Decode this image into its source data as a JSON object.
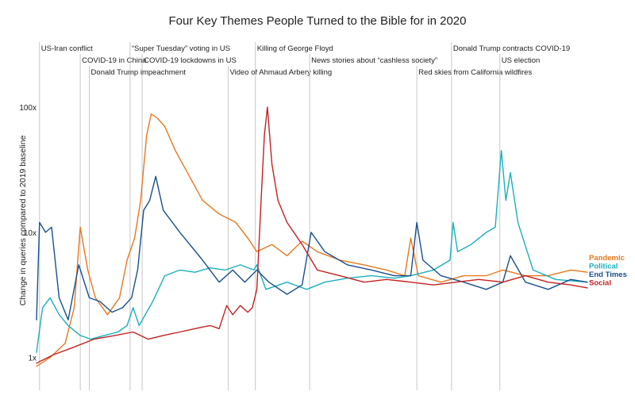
{
  "chart_data": {
    "type": "line",
    "title": "Four Key Themes People Turned to the Bible for in 2020",
    "ylabel": "Change in queries compared to 2019 baseline",
    "yscale": "log",
    "ylim": [
      0.8,
      140
    ],
    "xlim": [
      "2020-01-01",
      "2020-12-31"
    ],
    "y_ticks": [
      {
        "value": 1,
        "label": "1x"
      },
      {
        "value": 10,
        "label": "10x"
      },
      {
        "value": 100,
        "label": "100x"
      }
    ],
    "grid": false,
    "legend": "right",
    "events": [
      {
        "date": "2020-01-03",
        "label": "US-Iran conflict"
      },
      {
        "date": "2020-01-30",
        "label": "COVID-19 in China"
      },
      {
        "date": "2020-02-05",
        "label": "Donald Trump impeachment"
      },
      {
        "date": "2020-03-03",
        "label": "“Super Tuesday” voting in US"
      },
      {
        "date": "2020-03-11",
        "label": "COVID-19 lockdowns in US"
      },
      {
        "date": "2020-05-07",
        "label": "Video of Ahmaud Arbery killing"
      },
      {
        "date": "2020-05-25",
        "label": "Killing of George Floyd"
      },
      {
        "date": "2020-06-30",
        "label": "News stories about “cashless society”"
      },
      {
        "date": "2020-09-09",
        "label": "Red skies from California wildfires"
      },
      {
        "date": "2020-10-02",
        "label": "Donald Trump contracts COVID-19"
      },
      {
        "date": "2020-11-03",
        "label": "US election"
      }
    ],
    "series": [
      {
        "name": "Pandemic",
        "color": "#e8781e",
        "points": [
          [
            "2020-01-01",
            0.85
          ],
          [
            "2020-01-10",
            1.0
          ],
          [
            "2020-01-20",
            1.3
          ],
          [
            "2020-01-26",
            2.5
          ],
          [
            "2020-01-30",
            11
          ],
          [
            "2020-02-04",
            5
          ],
          [
            "2020-02-09",
            3
          ],
          [
            "2020-02-17",
            2.2
          ],
          [
            "2020-02-25",
            3.0
          ],
          [
            "2020-03-01",
            6
          ],
          [
            "2020-03-06",
            9
          ],
          [
            "2020-03-10",
            18
          ],
          [
            "2020-03-14",
            60
          ],
          [
            "2020-03-17",
            88
          ],
          [
            "2020-03-21",
            82
          ],
          [
            "2020-03-26",
            70
          ],
          [
            "2020-04-02",
            45
          ],
          [
            "2020-04-10",
            30
          ],
          [
            "2020-04-20",
            18
          ],
          [
            "2020-05-01",
            14
          ],
          [
            "2020-05-12",
            12
          ],
          [
            "2020-05-20",
            9
          ],
          [
            "2020-05-26",
            7
          ],
          [
            "2020-06-05",
            8
          ],
          [
            "2020-06-15",
            6.5
          ],
          [
            "2020-06-25",
            8.5
          ],
          [
            "2020-07-05",
            7
          ],
          [
            "2020-07-20",
            6
          ],
          [
            "2020-08-05",
            5.5
          ],
          [
            "2020-08-20",
            5
          ],
          [
            "2020-09-01",
            4.5
          ],
          [
            "2020-09-05",
            9
          ],
          [
            "2020-09-10",
            4.5
          ],
          [
            "2020-09-25",
            4
          ],
          [
            "2020-10-10",
            4.5
          ],
          [
            "2020-10-25",
            4.5
          ],
          [
            "2020-11-05",
            5
          ],
          [
            "2020-11-20",
            4.5
          ],
          [
            "2020-12-05",
            4.5
          ],
          [
            "2020-12-20",
            5
          ],
          [
            "2020-12-31",
            4.8
          ]
        ]
      },
      {
        "name": "Political",
        "color": "#1ab0bc",
        "points": [
          [
            "2020-01-01",
            1.1
          ],
          [
            "2020-01-05",
            2.5
          ],
          [
            "2020-01-10",
            3
          ],
          [
            "2020-01-16",
            2.2
          ],
          [
            "2020-01-22",
            1.8
          ],
          [
            "2020-01-30",
            1.5
          ],
          [
            "2020-02-06",
            1.4
          ],
          [
            "2020-02-15",
            1.5
          ],
          [
            "2020-02-24",
            1.6
          ],
          [
            "2020-03-01",
            1.8
          ],
          [
            "2020-03-05",
            2.5
          ],
          [
            "2020-03-09",
            1.8
          ],
          [
            "2020-03-18",
            2.8
          ],
          [
            "2020-03-26",
            4.5
          ],
          [
            "2020-04-05",
            5
          ],
          [
            "2020-04-15",
            4.8
          ],
          [
            "2020-04-25",
            5.2
          ],
          [
            "2020-05-05",
            5
          ],
          [
            "2020-05-15",
            5.5
          ],
          [
            "2020-05-24",
            5
          ],
          [
            "2020-05-26",
            5.5
          ],
          [
            "2020-06-01",
            3.5
          ],
          [
            "2020-06-15",
            4
          ],
          [
            "2020-06-28",
            3.5
          ],
          [
            "2020-07-10",
            4
          ],
          [
            "2020-07-25",
            4.3
          ],
          [
            "2020-08-10",
            4.5
          ],
          [
            "2020-08-25",
            4.3
          ],
          [
            "2020-09-05",
            4.5
          ],
          [
            "2020-09-20",
            5
          ],
          [
            "2020-10-01",
            6
          ],
          [
            "2020-10-03",
            12
          ],
          [
            "2020-10-06",
            7
          ],
          [
            "2020-10-15",
            8
          ],
          [
            "2020-10-25",
            10
          ],
          [
            "2020-10-31",
            11
          ],
          [
            "2020-11-04",
            45
          ],
          [
            "2020-11-07",
            18
          ],
          [
            "2020-11-10",
            30
          ],
          [
            "2020-11-15",
            12
          ],
          [
            "2020-11-25",
            5
          ],
          [
            "2020-12-10",
            4.2
          ],
          [
            "2020-12-31",
            4
          ]
        ]
      },
      {
        "name": "End Times",
        "color": "#1a4f8f",
        "points": [
          [
            "2020-01-01",
            2
          ],
          [
            "2020-01-03",
            12
          ],
          [
            "2020-01-07",
            10
          ],
          [
            "2020-01-11",
            11
          ],
          [
            "2020-01-16",
            3
          ],
          [
            "2020-01-22",
            2
          ],
          [
            "2020-01-29",
            5.5
          ],
          [
            "2020-02-05",
            3
          ],
          [
            "2020-02-12",
            2.8
          ],
          [
            "2020-02-20",
            2.3
          ],
          [
            "2020-02-27",
            2.5
          ],
          [
            "2020-03-04",
            3
          ],
          [
            "2020-03-08",
            5
          ],
          [
            "2020-03-12",
            15
          ],
          [
            "2020-03-16",
            18
          ],
          [
            "2020-03-20",
            28
          ],
          [
            "2020-03-25",
            15
          ],
          [
            "2020-04-05",
            10
          ],
          [
            "2020-04-20",
            6
          ],
          [
            "2020-05-01",
            4
          ],
          [
            "2020-05-10",
            5
          ],
          [
            "2020-05-18",
            4
          ],
          [
            "2020-05-26",
            5
          ],
          [
            "2020-06-03",
            4
          ],
          [
            "2020-06-15",
            3.2
          ],
          [
            "2020-06-25",
            3.8
          ],
          [
            "2020-07-01",
            10
          ],
          [
            "2020-07-10",
            7
          ],
          [
            "2020-07-25",
            5.5
          ],
          [
            "2020-08-10",
            5
          ],
          [
            "2020-08-25",
            4.5
          ],
          [
            "2020-09-05",
            4.5
          ],
          [
            "2020-09-09",
            12
          ],
          [
            "2020-09-13",
            6
          ],
          [
            "2020-09-25",
            4.5
          ],
          [
            "2020-10-10",
            4
          ],
          [
            "2020-10-25",
            3.5
          ],
          [
            "2020-11-05",
            4
          ],
          [
            "2020-11-10",
            6.5
          ],
          [
            "2020-11-20",
            4
          ],
          [
            "2020-12-05",
            3.5
          ],
          [
            "2020-12-20",
            4.2
          ],
          [
            "2020-12-31",
            4
          ]
        ]
      },
      {
        "name": "Social",
        "color": "#c42121",
        "points": [
          [
            "2020-01-01",
            0.9
          ],
          [
            "2020-01-12",
            1.05
          ],
          [
            "2020-01-25",
            1.2
          ],
          [
            "2020-02-08",
            1.4
          ],
          [
            "2020-02-22",
            1.5
          ],
          [
            "2020-03-05",
            1.6
          ],
          [
            "2020-03-15",
            1.4
          ],
          [
            "2020-03-25",
            1.5
          ],
          [
            "2020-04-05",
            1.6
          ],
          [
            "2020-04-15",
            1.7
          ],
          [
            "2020-04-25",
            1.8
          ],
          [
            "2020-05-01",
            1.7
          ],
          [
            "2020-05-06",
            2.6
          ],
          [
            "2020-05-10",
            2.2
          ],
          [
            "2020-05-15",
            2.6
          ],
          [
            "2020-05-20",
            2.3
          ],
          [
            "2020-05-23",
            2.5
          ],
          [
            "2020-05-26",
            3.5
          ],
          [
            "2020-05-29",
            20
          ],
          [
            "2020-05-31",
            60
          ],
          [
            "2020-06-02",
            100
          ],
          [
            "2020-06-05",
            35
          ],
          [
            "2020-06-09",
            18
          ],
          [
            "2020-06-15",
            12
          ],
          [
            "2020-06-25",
            8
          ],
          [
            "2020-07-05",
            5
          ],
          [
            "2020-07-20",
            4.5
          ],
          [
            "2020-08-05",
            4
          ],
          [
            "2020-08-20",
            4.2
          ],
          [
            "2020-09-05",
            4
          ],
          [
            "2020-09-20",
            3.8
          ],
          [
            "2020-10-05",
            4
          ],
          [
            "2020-10-20",
            4.2
          ],
          [
            "2020-11-05",
            4
          ],
          [
            "2020-11-20",
            4.5
          ],
          [
            "2020-12-05",
            4
          ],
          [
            "2020-12-20",
            3.8
          ],
          [
            "2020-12-31",
            3.6
          ]
        ]
      }
    ]
  }
}
